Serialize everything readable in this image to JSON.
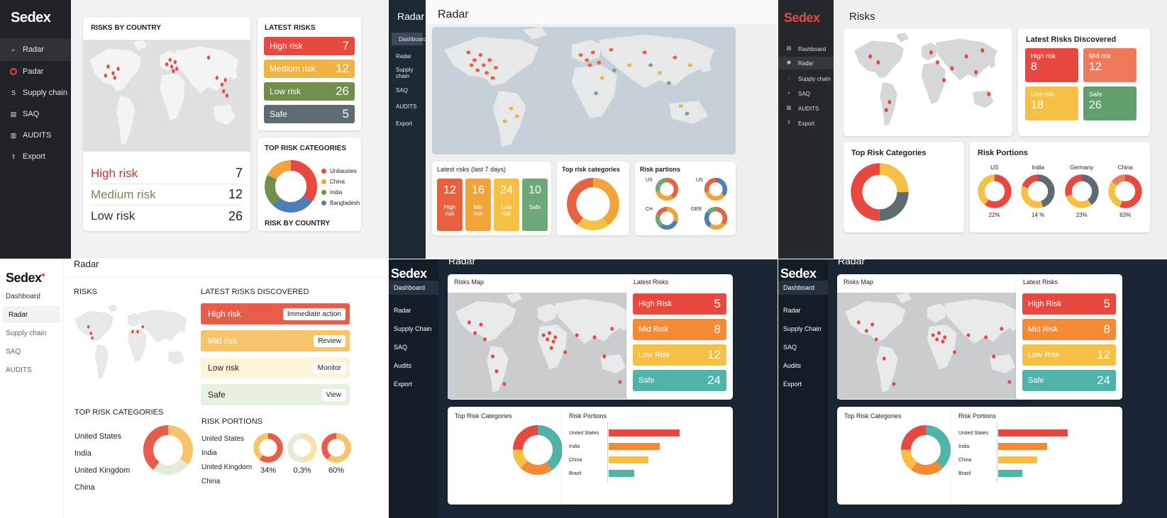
{
  "colors": {
    "red": "#e8483f",
    "orange": "#f5a33a",
    "amber": "#f5c043",
    "green": "#6f8f4b",
    "grey": "#5f6b73",
    "teal": "#4fb3a9",
    "sage": "#6ea878",
    "blue": "#4a7fb8",
    "salmon": "#f0795a",
    "map": "#d9dcde"
  },
  "p1": {
    "logo": "Sedex",
    "nav": [
      {
        "label": "Radar",
        "icon": "search-icon"
      },
      {
        "label": "Padar",
        "icon": "radar-icon"
      },
      {
        "label": "Supply chain",
        "icon": "chain-icon"
      },
      {
        "label": "SAQ",
        "icon": "document-icon"
      },
      {
        "label": "AUDITS",
        "icon": "clipboard-icon"
      },
      {
        "label": "Export",
        "icon": "export-icon"
      }
    ],
    "map_title": "RISKS BY COUNTRY",
    "summary": [
      {
        "label": "High risk",
        "value": "7"
      },
      {
        "label": "Medium risk",
        "value": "12"
      },
      {
        "label": "Low risk",
        "value": "26"
      }
    ],
    "latest_title": "LATEST RISKS",
    "latest": [
      {
        "label": "High risk",
        "value": "7"
      },
      {
        "label": "Medium risk",
        "value": "12"
      },
      {
        "label": "Low risk",
        "value": "26"
      },
      {
        "label": "Safe",
        "value": "5"
      }
    ],
    "cat_title": "TOP RISK CATEGORIES",
    "legend": [
      "Unitaustes",
      "China",
      "India",
      "Bangladesh"
    ],
    "footer": "RISK BY COUNTRY"
  },
  "p2": {
    "app": "Radar",
    "page": "Radar",
    "nav": [
      "Dashboard",
      "Radar",
      "Supply chain",
      "SAQ",
      "AUDITS",
      "Export"
    ],
    "latest_title": "Latest risks (last 7 days)",
    "latest": [
      {
        "value": "12",
        "label": "High risk"
      },
      {
        "value": "16",
        "label": "Mid risk"
      },
      {
        "value": "24",
        "label": "Low risk"
      },
      {
        "value": "10",
        "label": "Safe"
      }
    ],
    "cat_title": "Top risk categories",
    "portions_title": "Risk partions",
    "portions": [
      "US",
      "US",
      "CH",
      "GER"
    ]
  },
  "p3": {
    "logo": "Sedex",
    "page": "Risks",
    "nav": [
      {
        "label": "Rashboard",
        "icon": "grid-icon"
      },
      {
        "label": "Radar",
        "icon": "radar-icon"
      },
      {
        "label": "Supply chain",
        "icon": "chain-icon"
      },
      {
        "label": "SAQ",
        "icon": "search-icon"
      },
      {
        "label": "AUDITS",
        "icon": "clipboard-icon"
      },
      {
        "label": "Export",
        "icon": "export-icon"
      }
    ],
    "latest_title": "Latest Risks Discovered",
    "latest": [
      {
        "label": "High risk",
        "value": "8"
      },
      {
        "label": "Mid risk",
        "value": "12"
      },
      {
        "label": "Low risk",
        "value": "18"
      },
      {
        "label": "Safe",
        "value": "26"
      }
    ],
    "cat_title": "Top Risk Categories",
    "portions_title": "Risk Portions",
    "portions": [
      {
        "name": "US",
        "pct": "22%"
      },
      {
        "name": "India",
        "pct": "14 %"
      },
      {
        "name": "Germany",
        "pct": "23%"
      },
      {
        "name": "China",
        "pct": "63%"
      }
    ]
  },
  "p4": {
    "logo": "Sedex",
    "page": "Radar",
    "nav": [
      "Dashboard",
      "Radar",
      "Supply chain",
      "SAQ",
      "AUDITS"
    ],
    "risks_title": "RISKS",
    "latest_title": "LATEST RISKS DISCOVERED",
    "latest": [
      {
        "label": "High risk",
        "action": "Immediate action"
      },
      {
        "label": "Mid risk",
        "action": "Review"
      },
      {
        "label": "Low risk",
        "action": "Monitor"
      },
      {
        "label": "Safe",
        "action": "View"
      }
    ],
    "cat_title": "TOP RISK CATEGORIES",
    "cat_list": [
      "United States",
      "India",
      "United Kingdom",
      "China"
    ],
    "portions_title": "RISK PORTIONS",
    "portions_list": [
      "United States",
      "India",
      "United Kingdom",
      "China"
    ],
    "portions_pct": [
      "34%",
      "0,3%",
      "60%"
    ]
  },
  "p5": {
    "logo": "Sedex",
    "page": "Radar",
    "nav": [
      "Dashboard",
      "Radar",
      "Supply Chain",
      "SAQ",
      "Audits",
      "Export"
    ],
    "map_title": "Risks Map",
    "latest_title": "Latest Risks",
    "latest": [
      {
        "label": "High Risk",
        "value": "5"
      },
      {
        "label": "Mid Risk",
        "value": "8"
      },
      {
        "label": "Low Risk",
        "value": "12"
      },
      {
        "label": "Safe",
        "value": "24"
      }
    ],
    "cat_title": "Top Risk Categories",
    "portions_title": "Risk Portions",
    "bars": [
      {
        "name": "United States",
        "value": 100
      },
      {
        "name": "India",
        "value": 72
      },
      {
        "name": "China",
        "value": 56
      },
      {
        "name": "Brazil",
        "value": 36
      }
    ]
  },
  "p6": {
    "logo": "Sedex",
    "page": "Radar",
    "nav": [
      "Dashboard",
      "Radar",
      "Supply Chain",
      "SAQ",
      "Audits",
      "Export"
    ],
    "map_title": "Risks Map",
    "latest_title": "Latest Risks",
    "latest": [
      {
        "label": "High Risk",
        "value": "5"
      },
      {
        "label": "Mid Risk",
        "value": "8"
      },
      {
        "label": "Low Risk",
        "value": "12"
      },
      {
        "label": "Safe",
        "value": "24"
      }
    ],
    "cat_title": "Top Risk Categories",
    "portions_title": "Risk Portions",
    "bars": [
      {
        "name": "United States",
        "value": 100
      },
      {
        "name": "India",
        "value": 70
      },
      {
        "name": "China",
        "value": 56
      },
      {
        "name": "Brazil",
        "value": 35
      }
    ]
  }
}
